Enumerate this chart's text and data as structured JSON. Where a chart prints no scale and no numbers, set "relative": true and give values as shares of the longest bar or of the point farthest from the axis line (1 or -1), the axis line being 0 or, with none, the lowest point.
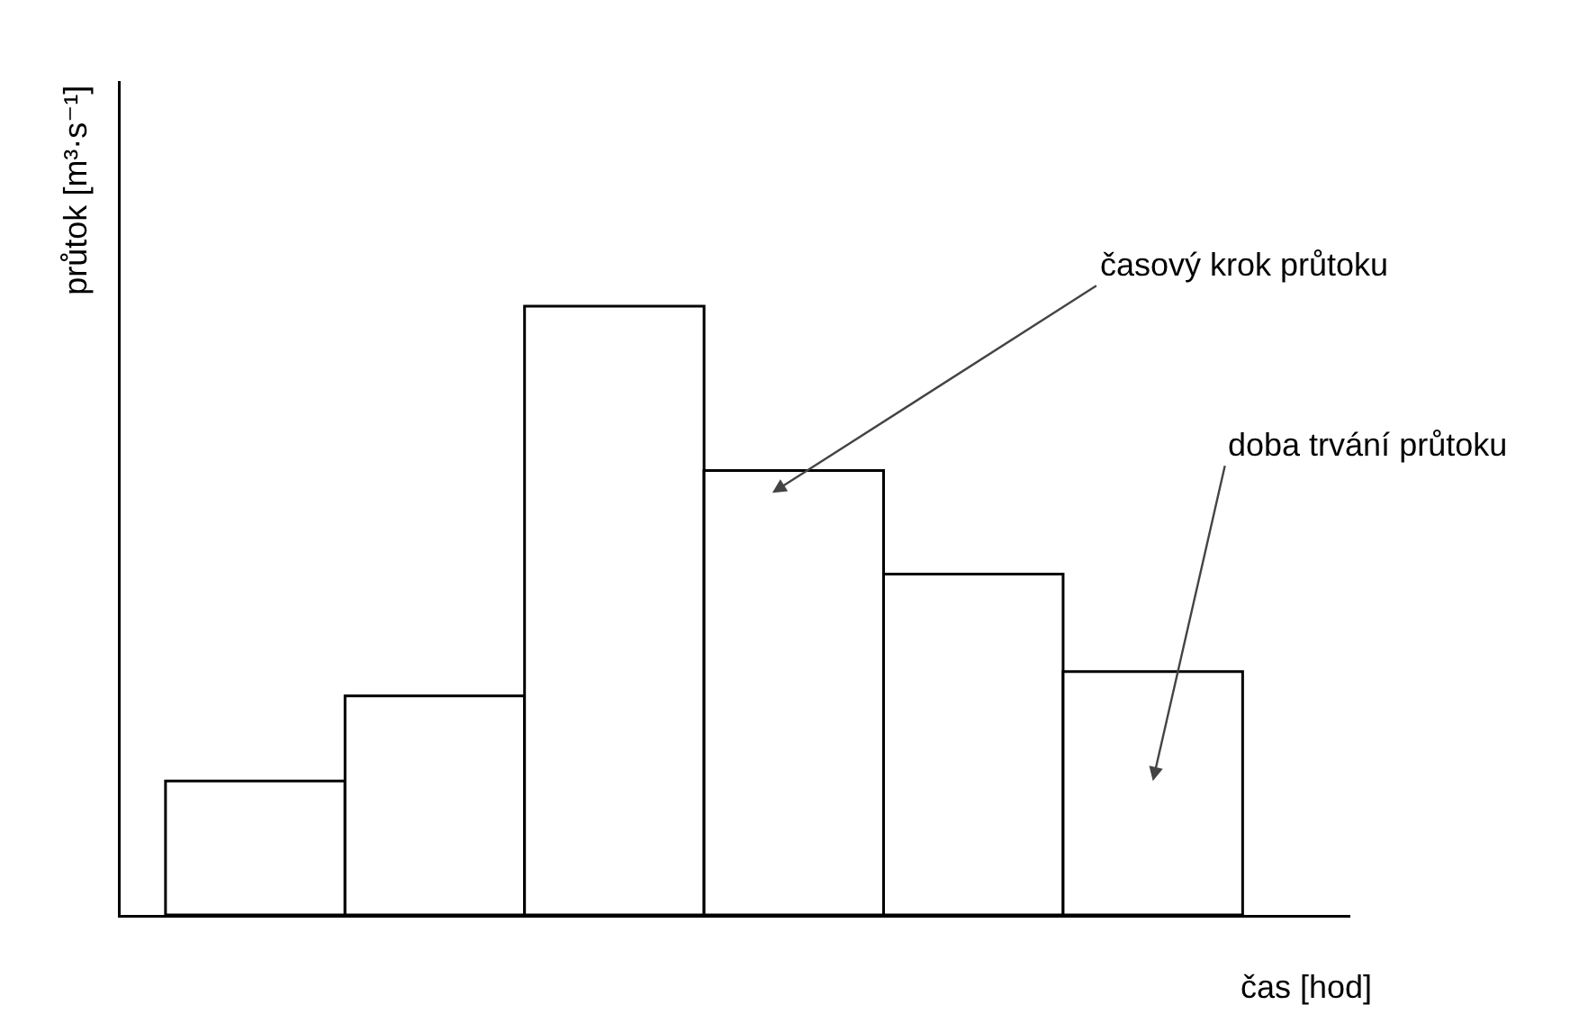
{
  "chart_data": {
    "type": "bar",
    "relative": true,
    "xlabel": "čas [hod]",
    "ylabel": "průtok [m³·s⁻¹]",
    "categories": [
      null,
      null,
      null,
      null,
      null,
      null
    ],
    "values": [
      0.22,
      0.36,
      1,
      0.73,
      0.56,
      0.4
    ],
    "color": "#ffffff",
    "annotations": [
      "časový krok průtoku",
      "doba trvání průtoku"
    ],
    "legend": false
  }
}
